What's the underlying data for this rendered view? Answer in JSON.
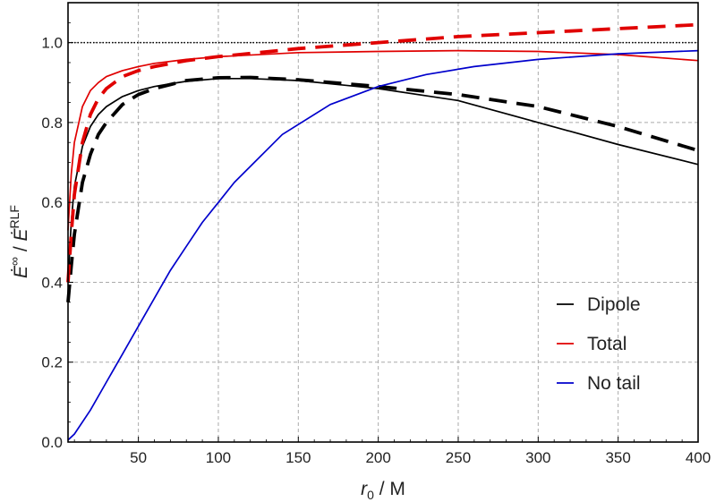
{
  "chart_data": {
    "type": "line",
    "xlabel_main": "r",
    "xlabel_sub": "0",
    "xlabel_rest": " / M",
    "ylabel_num": "Ė",
    "ylabel_num_sup": "∞",
    "ylabel_sep": " / ",
    "ylabel_den": "Ė",
    "ylabel_den_sup": "RLF",
    "xlim": [
      6,
      400
    ],
    "ylim": [
      0,
      1.1
    ],
    "xticks": [
      50,
      100,
      150,
      200,
      250,
      300,
      350,
      400
    ],
    "yticks": [
      0.0,
      0.2,
      0.4,
      0.6,
      0.8,
      1.0
    ],
    "ytick_labels": [
      "0.0",
      "0.2",
      "0.4",
      "0.6",
      "0.8",
      "1.0"
    ],
    "grid": true,
    "reference_line": {
      "y": 1.0,
      "style": "dotted",
      "color": "#000000"
    },
    "legend": {
      "position": "lower-right",
      "entries": [
        {
          "label": "Dipole",
          "color": "#000000"
        },
        {
          "label": "Total",
          "color": "#e00000"
        },
        {
          "label": "No tail",
          "color": "#0000cc"
        }
      ]
    },
    "series": [
      {
        "name": "Dipole",
        "color": "#000000",
        "style": "solid",
        "x": [
          6,
          8,
          10,
          15,
          20,
          25,
          30,
          40,
          50,
          60,
          70,
          80,
          100,
          120,
          150,
          200,
          250,
          300,
          350,
          400
        ],
        "y": [
          0.4,
          0.55,
          0.64,
          0.74,
          0.79,
          0.82,
          0.84,
          0.865,
          0.88,
          0.89,
          0.897,
          0.903,
          0.91,
          0.91,
          0.905,
          0.885,
          0.855,
          0.8,
          0.745,
          0.695
        ]
      },
      {
        "name": "Dipole (dashed)",
        "color": "#000000",
        "style": "dashed",
        "x": [
          6,
          8,
          10,
          15,
          20,
          25,
          30,
          40,
          50,
          60,
          70,
          80,
          100,
          120,
          150,
          200,
          250,
          300,
          350,
          400
        ],
        "y": [
          0.35,
          0.44,
          0.52,
          0.65,
          0.72,
          0.77,
          0.8,
          0.845,
          0.87,
          0.885,
          0.895,
          0.905,
          0.912,
          0.913,
          0.907,
          0.89,
          0.87,
          0.84,
          0.79,
          0.73
        ]
      },
      {
        "name": "Total",
        "color": "#e00000",
        "style": "solid",
        "x": [
          6,
          8,
          10,
          15,
          20,
          25,
          30,
          40,
          50,
          60,
          80,
          100,
          150,
          200,
          250,
          300,
          350,
          400
        ],
        "y": [
          0.53,
          0.67,
          0.75,
          0.84,
          0.88,
          0.9,
          0.915,
          0.93,
          0.94,
          0.948,
          0.958,
          0.965,
          0.975,
          0.978,
          0.98,
          0.978,
          0.97,
          0.955
        ]
      },
      {
        "name": "Total (dashed)",
        "color": "#e00000",
        "style": "dashed",
        "x": [
          6,
          8,
          10,
          15,
          20,
          25,
          30,
          40,
          50,
          60,
          80,
          100,
          150,
          200,
          250,
          300,
          350,
          400
        ],
        "y": [
          0.4,
          0.52,
          0.62,
          0.75,
          0.82,
          0.86,
          0.885,
          0.915,
          0.93,
          0.94,
          0.955,
          0.965,
          0.985,
          1.0,
          1.015,
          1.025,
          1.035,
          1.045
        ]
      },
      {
        "name": "No tail",
        "color": "#0000cc",
        "style": "solid",
        "x": [
          6,
          10,
          20,
          30,
          40,
          50,
          60,
          70,
          80,
          90,
          100,
          110,
          120,
          140,
          170,
          200,
          230,
          260,
          300,
          350,
          400
        ],
        "y": [
          0.005,
          0.02,
          0.08,
          0.15,
          0.22,
          0.29,
          0.36,
          0.43,
          0.49,
          0.55,
          0.6,
          0.65,
          0.69,
          0.77,
          0.845,
          0.89,
          0.92,
          0.94,
          0.958,
          0.972,
          0.98
        ]
      }
    ]
  }
}
